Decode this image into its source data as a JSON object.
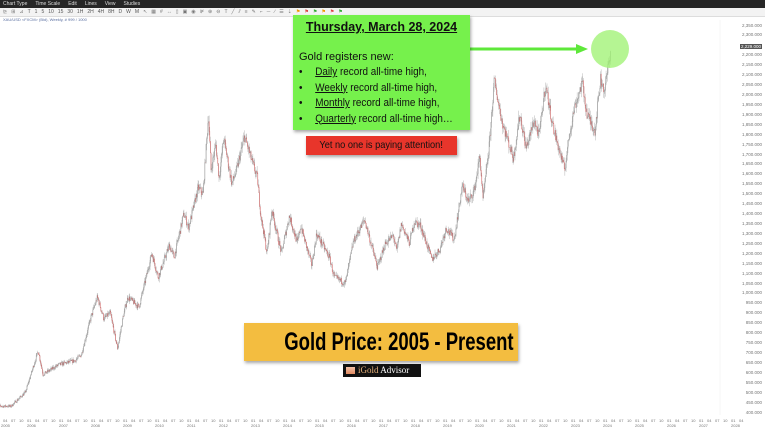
{
  "menu": [
    "Chart Type",
    "Time Scale",
    "Edit",
    "Lines",
    "View",
    "Studies"
  ],
  "toolbar": {
    "intervals": [
      "T",
      "1",
      "5",
      "10",
      "15",
      "30",
      "1H",
      "2H",
      "4H",
      "8H",
      "D",
      "W",
      "M"
    ],
    "icons": [
      "bar-chart-icon",
      "candle-chart-icon",
      "line-chart-icon",
      "cursor-icon",
      "calendar-icon",
      "crosshair-icon",
      "measure-icon",
      "trash-icon",
      "save-icon",
      "camera-icon",
      "compare-icon",
      "zoom-in-icon",
      "zoom-out-icon",
      "text-tool-icon",
      "trendline-icon",
      "channel-icon",
      "fib-icon",
      "pencil-icon",
      "ray-icon",
      "hline-icon",
      "brush-icon",
      "layers-icon",
      "download-icon",
      "alert-icon",
      "buy-icon",
      "sell-icon",
      "flag-icon",
      "flag-icon",
      "flag-icon"
    ]
  },
  "symbol": "XAU/USD <FXCM> (Bid), Weekly, # 999 / 1000",
  "green_box": {
    "date": "Thursday, March 28, 2024",
    "intro": "Gold registers new:",
    "items": [
      {
        "bullet": "•",
        "underlined": "Daily",
        "rest": " record all-time high,"
      },
      {
        "bullet": "•",
        "underlined": "Weekly",
        "rest": " record all-time high,"
      },
      {
        "bullet": "•",
        "underlined": "Monthly",
        "rest": " record all-time high,"
      },
      {
        "bullet": "•",
        "underlined": "Quarterly",
        "rest": " record all-time high…"
      }
    ],
    "color": "#76f14c"
  },
  "red_box": {
    "text": "Yet no one is paying attention!",
    "color": "#e8352b"
  },
  "title_box": {
    "text": "Gold Price: 2005 - Present",
    "color": "#f3bd40"
  },
  "badge": {
    "part1": "iGold",
    "part2": " Advisor"
  },
  "chart_data": {
    "type": "candlestick",
    "interval": "weekly",
    "y_axis": {
      "min": 400,
      "max": 2350,
      "step": 50,
      "position": "right",
      "labels": [
        "2,350.000",
        "2,300.000",
        "2,200.000",
        "2,150.000",
        "2,100.000",
        "2,050.000",
        "2,000.000",
        "1,950.000",
        "1,900.000",
        "1,850.000",
        "1,800.000",
        "1,750.000",
        "1,700.000",
        "1,650.000",
        "1,600.000",
        "1,550.000",
        "1,500.000",
        "1,450.000",
        "1,400.000",
        "1,350.000",
        "1,300.000",
        "1,250.000",
        "1,200.000",
        "1,150.000",
        "1,100.000",
        "1,050.000",
        "1,000.000",
        "950.000",
        "900.000",
        "850.000",
        "800.000",
        "750.000",
        "700.000",
        "650.000",
        "600.000",
        "550.000",
        "500.000",
        "450.000",
        "400.000"
      ],
      "current_price_label": "2,229.000"
    },
    "x_axis": {
      "years": [
        "2005",
        "2006",
        "2007",
        "2008",
        "2009",
        "2010",
        "2011",
        "2012",
        "2013",
        "2014",
        "2015",
        "2016",
        "2017",
        "2018",
        "2019",
        "2020",
        "2021",
        "2022",
        "2023",
        "2024",
        "2025",
        "2026",
        "2027",
        "2028"
      ],
      "months": [
        "01",
        "04",
        "07",
        "10"
      ]
    },
    "price_path": [
      [
        2005.0,
        430
      ],
      [
        2005.5,
        430
      ],
      [
        2005.95,
        500
      ],
      [
        2006.35,
        710
      ],
      [
        2006.5,
        590
      ],
      [
        2006.8,
        620
      ],
      [
        2007.0,
        640
      ],
      [
        2007.5,
        660
      ],
      [
        2007.7,
        690
      ],
      [
        2008.0,
        880
      ],
      [
        2008.2,
        980
      ],
      [
        2008.4,
        870
      ],
      [
        2008.6,
        900
      ],
      [
        2008.83,
        720
      ],
      [
        2009.0,
        880
      ],
      [
        2009.15,
        980
      ],
      [
        2009.5,
        930
      ],
      [
        2009.9,
        1200
      ],
      [
        2010.1,
        1080
      ],
      [
        2010.45,
        1240
      ],
      [
        2010.6,
        1180
      ],
      [
        2010.9,
        1400
      ],
      [
        2011.05,
        1330
      ],
      [
        2011.35,
        1530
      ],
      [
        2011.5,
        1500
      ],
      [
        2011.67,
        1900
      ],
      [
        2011.75,
        1620
      ],
      [
        2011.9,
        1750
      ],
      [
        2012.0,
        1580
      ],
      [
        2012.15,
        1780
      ],
      [
        2012.4,
        1550
      ],
      [
        2012.55,
        1620
      ],
      [
        2012.8,
        1790
      ],
      [
        2013.0,
        1680
      ],
      [
        2013.2,
        1580
      ],
      [
        2013.3,
        1400
      ],
      [
        2013.5,
        1200
      ],
      [
        2013.65,
        1420
      ],
      [
        2013.95,
        1200
      ],
      [
        2014.2,
        1390
      ],
      [
        2014.45,
        1250
      ],
      [
        2014.55,
        1340
      ],
      [
        2014.9,
        1140
      ],
      [
        2015.05,
        1300
      ],
      [
        2015.45,
        1180
      ],
      [
        2015.6,
        1080
      ],
      [
        2015.95,
        1050
      ],
      [
        2016.2,
        1260
      ],
      [
        2016.55,
        1370
      ],
      [
        2016.95,
        1130
      ],
      [
        2017.2,
        1250
      ],
      [
        2017.45,
        1290
      ],
      [
        2017.55,
        1210
      ],
      [
        2017.7,
        1350
      ],
      [
        2017.95,
        1250
      ],
      [
        2018.1,
        1360
      ],
      [
        2018.3,
        1340
      ],
      [
        2018.65,
        1170
      ],
      [
        2018.9,
        1220
      ],
      [
        2019.1,
        1330
      ],
      [
        2019.35,
        1270
      ],
      [
        2019.6,
        1540
      ],
      [
        2019.8,
        1460
      ],
      [
        2019.98,
        1520
      ],
      [
        2020.15,
        1690
      ],
      [
        2020.25,
        1470
      ],
      [
        2020.45,
        1750
      ],
      [
        2020.6,
        2070
      ],
      [
        2020.85,
        1860
      ],
      [
        2021.2,
        1680
      ],
      [
        2021.4,
        1900
      ],
      [
        2021.6,
        1730
      ],
      [
        2021.85,
        1870
      ],
      [
        2022.0,
        1790
      ],
      [
        2022.2,
        2050
      ],
      [
        2022.45,
        1830
      ],
      [
        2022.8,
        1620
      ],
      [
        2022.95,
        1800
      ],
      [
        2023.1,
        1930
      ],
      [
        2023.35,
        2060
      ],
      [
        2023.5,
        1900
      ],
      [
        2023.75,
        1820
      ],
      [
        2023.92,
        2080
      ],
      [
        2024.05,
        2020
      ],
      [
        2024.18,
        2160
      ],
      [
        2024.24,
        2235
      ]
    ]
  }
}
